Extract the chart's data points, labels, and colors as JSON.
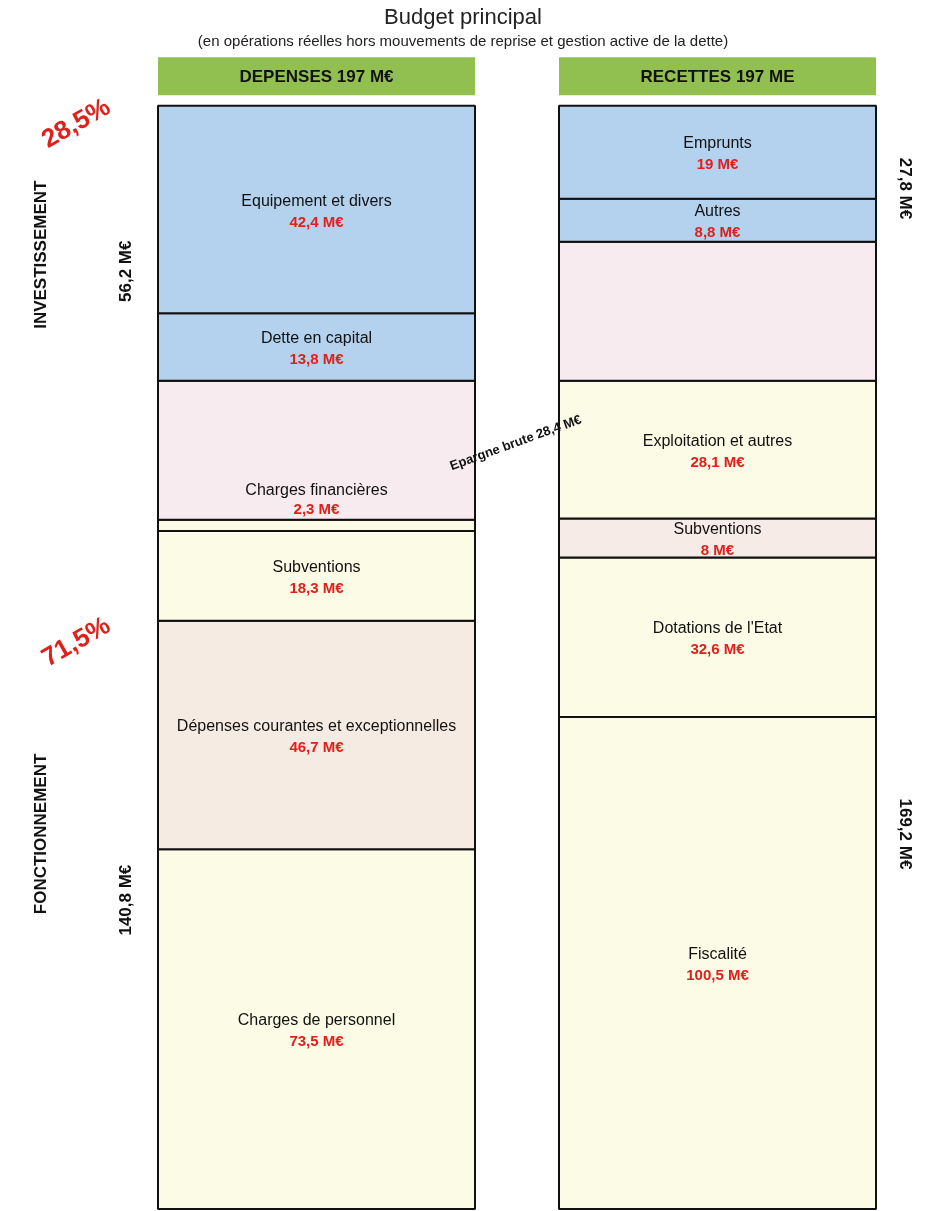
{
  "chart_data": {
    "type": "bar",
    "stacked": true,
    "title": "Budget principal",
    "subtitle": "(en opérations réelles hors mouvements de reprise et gestion active de la dette)",
    "categories": [
      "DEPENSES 197 M€",
      "RECETTES 197 ME"
    ],
    "series": [
      {
        "values": [
          73.5,
          100.5
        ],
        "colors": [
          "#fbfbe6",
          "#fbfbe6"
        ],
        "value_labels": [
          "73,5 M€",
          "100,5 M€"
        ]
      },
      {
        "values": [
          46.7,
          32.6
        ],
        "colors": [
          "#f6ebe2",
          "#fbfbe6"
        ],
        "value_labels": [
          "46,7 M€",
          "32,6 M€"
        ]
      },
      {
        "values": [
          18.3,
          8
        ],
        "colors": [
          "#fbfbe6",
          "#f6ebe6"
        ],
        "value_labels": [
          "18,3 M€",
          "8 M€"
        ]
      },
      {
        "values": [
          2.3,
          28.1
        ],
        "colors": [
          "#fbfbe6",
          "#fbfbe6"
        ],
        "value_labels": [
          "2,3 M€",
          "28,1 M€"
        ]
      },
      {
        "values": [
          28.4,
          28.4
        ],
        "colors": [
          "#f7ebef",
          "#f7ebef"
        ],
        "value_labels": [
          null,
          null
        ]
      },
      {
        "values": [
          13.8,
          8.8
        ],
        "colors": [
          "#b4d2ee",
          "#b4d2ee"
        ],
        "value_labels": [
          "13,8 M€",
          "8,8 M€"
        ]
      },
      {
        "values": [
          42.4,
          19
        ],
        "colors": [
          "#b4d2ee",
          "#b4d2ee"
        ],
        "value_labels": [
          "42,4 M€",
          "19 M€"
        ]
      }
    ],
    "annotations": [
      "Charges de personnel",
      "Fiscalité",
      "Dépenses courantes et exceptionnelles",
      "Dotations de l'Etat",
      "Subventions",
      "Subventions",
      "Charges financières",
      "Exploitation et autres",
      "Dette en capital",
      "Autres",
      "Equipement et divers",
      "Emprunts",
      "28,5%",
      "INVESTISSEMENT",
      "56,2 M€",
      "71,5%",
      "FONCTIONNEMENT",
      "140,8 M€",
      "27,8 M€",
      "169,2 M€",
      "Epargne brute 28,4 M€"
    ]
  }
}
